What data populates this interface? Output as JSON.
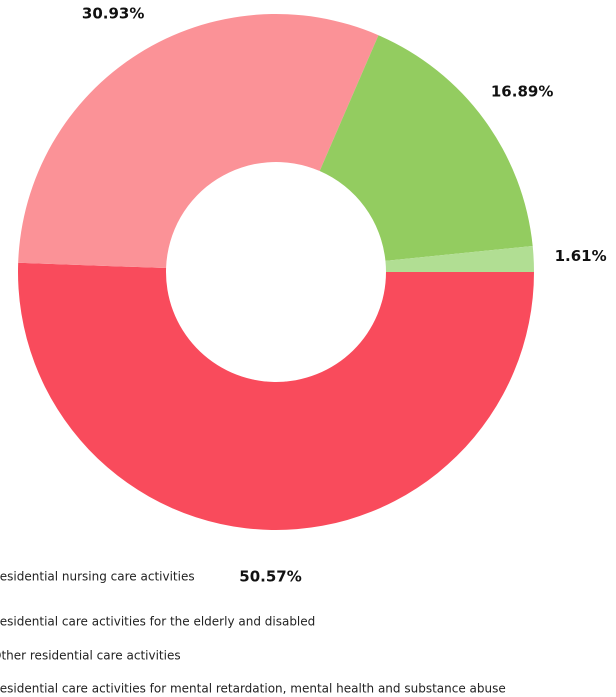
{
  "chart_data": {
    "type": "donut",
    "categories": [
      "Residential nursing care activities",
      "Residential care activities for the elderly and disabled",
      "Other residential care activities",
      "Residential care activities for mental retardation, mental health and substance abuse"
    ],
    "values": [
      50.57,
      30.93,
      16.89,
      1.61
    ],
    "value_labels": [
      "50.57%",
      "30.93%",
      "16.89%",
      "1.61%"
    ],
    "colors": [
      "#f94b5c",
      "#fb9297",
      "#93cc60",
      "#b1de93"
    ]
  }
}
